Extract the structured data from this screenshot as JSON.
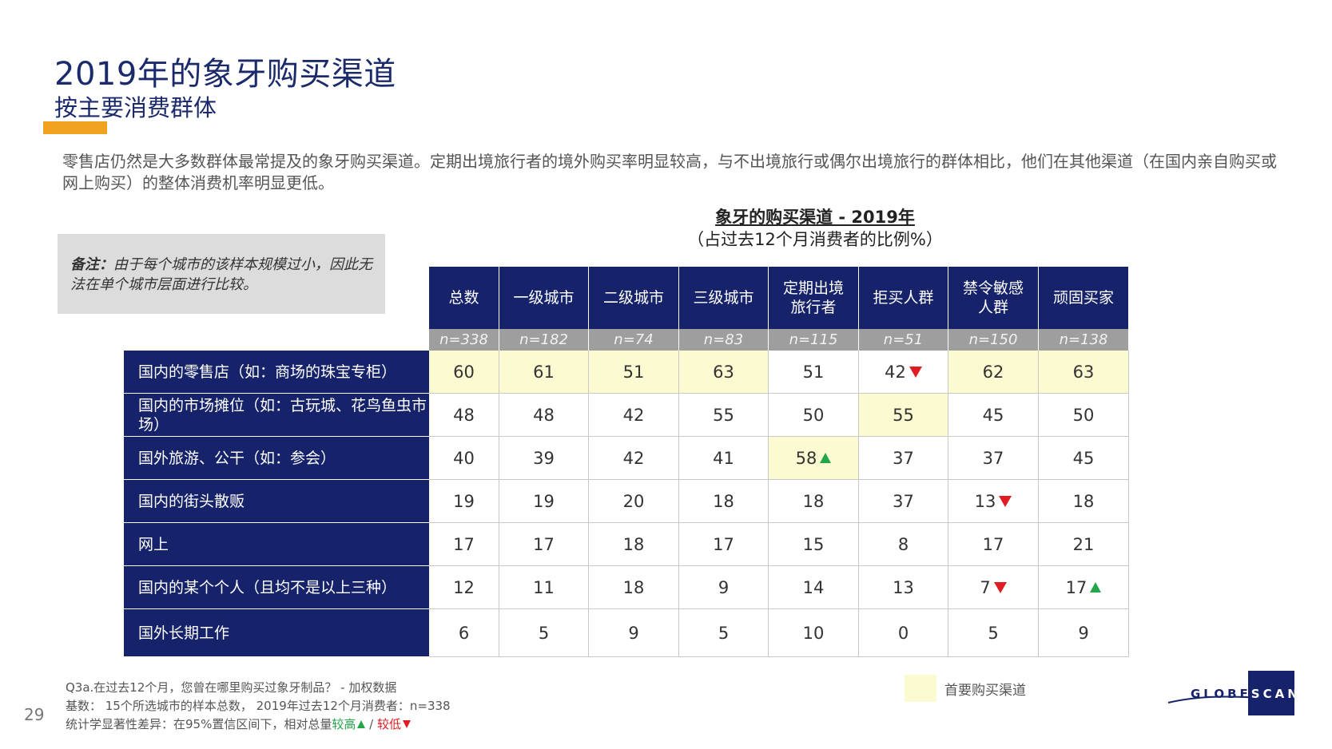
{
  "slide": {
    "title": "2019年的象牙购买渠道",
    "subtitle": "按主要消费群体",
    "intro": "零售店仍然是大多数群体最常提及的象牙购买渠道。定期出境旅行者的境外购买率明显较高，与不出境旅行或偶尔出境旅行的群体相比，他们在其他渠道（在国内亲自购买或网上购买）的整体消费机率明显更低。",
    "page_number": "29",
    "accent_color": "#f0a320"
  },
  "note": {
    "label": "备注：",
    "text": "由于每个城市的该样本规模过小，因此无法在单个城市层面进行比较。"
  },
  "table": {
    "title": "象牙的购买渠道 - 2019年",
    "subtitle": "（占过去12个月消费者的比例%）",
    "columns": [
      "总数",
      "一级城市",
      "二级城市",
      "三级城市",
      "定期出境旅行者",
      "拒买人群",
      "禁令敏感人群",
      "顽固买家"
    ],
    "column_lines": [
      [
        "总数"
      ],
      [
        "一级城市"
      ],
      [
        "二级城市"
      ],
      [
        "三级城市"
      ],
      [
        "定期出境",
        "旅行者"
      ],
      [
        "拒买人群"
      ],
      [
        "禁令敏感",
        "人群"
      ],
      [
        "顽固买家"
      ]
    ],
    "sample_sizes": [
      "n=338",
      "n=182",
      "n=74",
      "n=83",
      "n=115",
      "n=51",
      "n=150",
      "n=138"
    ],
    "rows": [
      {
        "label": "国内的零售店（如：商场的珠宝专柜）",
        "values": [
          "60",
          "61",
          "51",
          "63",
          "51",
          "42",
          "62",
          "63"
        ],
        "highlight": [
          true,
          true,
          true,
          true,
          false,
          false,
          true,
          true
        ],
        "sig": [
          "",
          "",
          "",
          "",
          "",
          "down",
          "",
          ""
        ]
      },
      {
        "label": "国内的市场摊位（如：古玩城、花鸟鱼虫市场）",
        "values": [
          "48",
          "48",
          "42",
          "55",
          "50",
          "55",
          "45",
          "50"
        ],
        "highlight": [
          false,
          false,
          false,
          false,
          false,
          true,
          false,
          false
        ],
        "sig": [
          "",
          "",
          "",
          "",
          "",
          "",
          "",
          ""
        ]
      },
      {
        "label": "国外旅游、公干（如：参会）",
        "values": [
          "40",
          "39",
          "42",
          "41",
          "58",
          "37",
          "37",
          "45"
        ],
        "highlight": [
          false,
          false,
          false,
          false,
          true,
          false,
          false,
          false
        ],
        "sig": [
          "",
          "",
          "",
          "",
          "up",
          "",
          "",
          ""
        ]
      },
      {
        "label": "国内的街头散贩",
        "values": [
          "19",
          "19",
          "20",
          "18",
          "18",
          "37",
          "13",
          "18"
        ],
        "highlight": [
          false,
          false,
          false,
          false,
          false,
          false,
          false,
          false
        ],
        "sig": [
          "",
          "",
          "",
          "",
          "",
          "",
          "down",
          ""
        ]
      },
      {
        "label": "网上",
        "values": [
          "17",
          "17",
          "18",
          "17",
          "15",
          "8",
          "17",
          "21"
        ],
        "highlight": [
          false,
          false,
          false,
          false,
          false,
          false,
          false,
          false
        ],
        "sig": [
          "",
          "",
          "",
          "",
          "",
          "",
          "",
          ""
        ]
      },
      {
        "label": "国内的某个个人（且均不是以上三种）",
        "values": [
          "12",
          "11",
          "18",
          "9",
          "14",
          "13",
          "7",
          "17"
        ],
        "highlight": [
          false,
          false,
          false,
          false,
          false,
          false,
          false,
          false
        ],
        "sig": [
          "",
          "",
          "",
          "",
          "",
          "",
          "down",
          "up"
        ]
      },
      {
        "label": "国外长期工作",
        "values": [
          "6",
          "5",
          "9",
          "5",
          "10",
          "0",
          "5",
          "9"
        ],
        "highlight": [
          false,
          false,
          false,
          false,
          false,
          false,
          false,
          false
        ],
        "sig": [
          "",
          "",
          "",
          "",
          "",
          "",
          "",
          ""
        ]
      }
    ]
  },
  "legend": {
    "label": "首要购买渠道",
    "color": "#fcfad0"
  },
  "footnotes": {
    "q": "Q3a.在过去12个月，您曾在哪里购买过象牙制品？ - 加权数据",
    "base": "基数： 15个所选城市的样本总数， 2019年过去12个月消费者：n=338",
    "sig_prefix": "统计学显著性差异：在95%置信区间下，相对总量",
    "higher": "较高",
    "sep": " / ",
    "lower": "较低"
  },
  "logo": {
    "text_a": "GLOBE",
    "text_b": "SCAN"
  }
}
